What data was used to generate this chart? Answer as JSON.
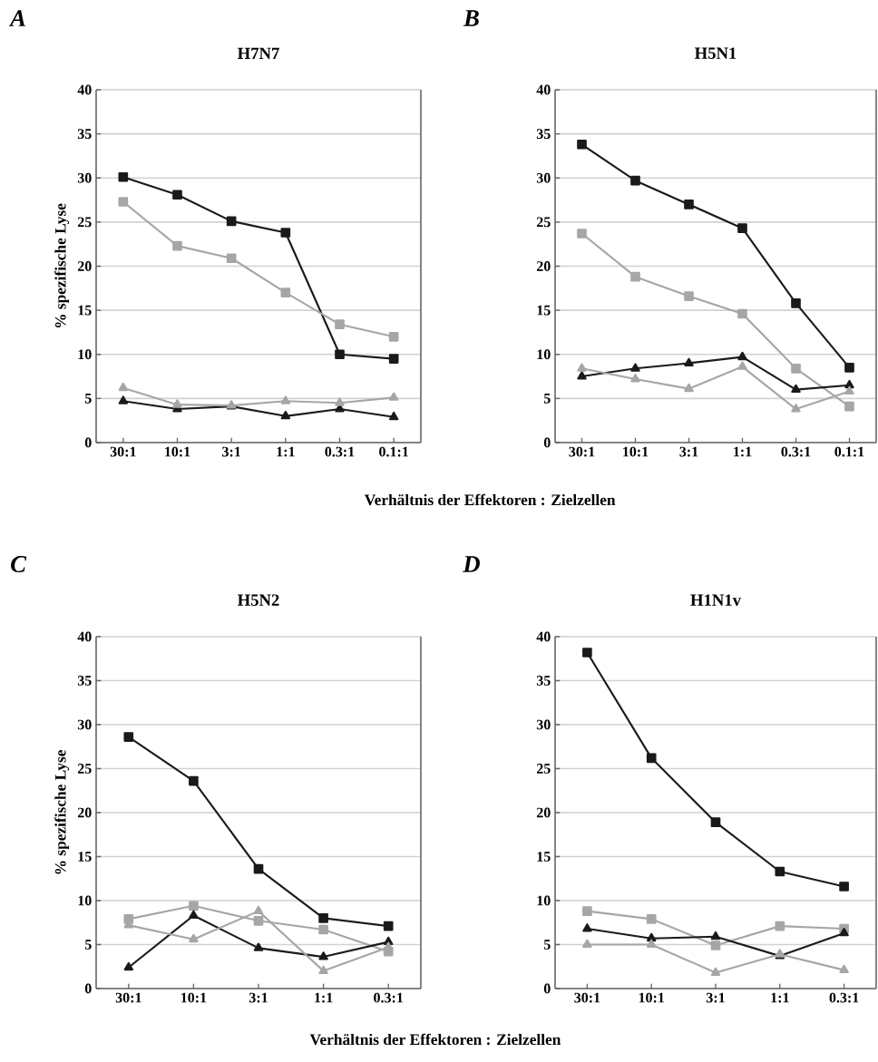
{
  "chart_data": [
    {
      "type": "line",
      "title": "H7N7",
      "ylabel": "% spezifische Lyse",
      "annotations": [
        "A"
      ],
      "categories": [
        "30:1",
        "10:1",
        "3:1",
        "1:1",
        "0.3:1",
        "0.1:1"
      ],
      "ylim": [
        0,
        40
      ],
      "yticks": [
        0,
        5,
        10,
        15,
        20,
        25,
        30,
        35,
        40
      ],
      "grid": "y",
      "series": [
        {
          "color": "#1a1a1a",
          "marker": "square",
          "values": [
            30.1,
            28.1,
            25.1,
            23.8,
            10.0,
            9.5
          ]
        },
        {
          "color": "#a6a6a6",
          "marker": "square",
          "values": [
            27.3,
            22.3,
            20.9,
            17.0,
            13.4,
            12.0
          ]
        },
        {
          "color": "#1a1a1a",
          "marker": "triangle",
          "values": [
            4.7,
            3.8,
            4.1,
            3.0,
            3.8,
            2.9
          ]
        },
        {
          "color": "#a6a6a6",
          "marker": "triangle",
          "values": [
            6.2,
            4.3,
            4.2,
            4.7,
            4.5,
            5.1
          ]
        }
      ]
    },
    {
      "type": "line",
      "title": "H5N1",
      "xlabel": "Verhältnis der Effektoren : Zielzellen",
      "annotations": [
        "B"
      ],
      "categories": [
        "30:1",
        "10:1",
        "3:1",
        "1:1",
        "0.3:1",
        "0.1:1"
      ],
      "ylim": [
        0,
        40
      ],
      "yticks": [
        0,
        5,
        10,
        15,
        20,
        25,
        30,
        35,
        40
      ],
      "grid": "y",
      "series": [
        {
          "color": "#1a1a1a",
          "marker": "square",
          "values": [
            33.8,
            29.7,
            27.0,
            24.3,
            15.8,
            8.5
          ]
        },
        {
          "color": "#a6a6a6",
          "marker": "square",
          "values": [
            23.7,
            18.8,
            16.6,
            14.6,
            8.4,
            4.1
          ]
        },
        {
          "color": "#1a1a1a",
          "marker": "triangle",
          "values": [
            7.5,
            8.4,
            9.0,
            9.7,
            6.0,
            6.5
          ]
        },
        {
          "color": "#a6a6a6",
          "marker": "triangle",
          "values": [
            8.4,
            7.2,
            6.1,
            8.6,
            3.8,
            5.8
          ]
        }
      ]
    },
    {
      "type": "line",
      "title": "H5N2",
      "ylabel": "% spezifische Lyse",
      "annotations": [
        "C"
      ],
      "categories": [
        "30:1",
        "10:1",
        "3:1",
        "1:1",
        "0.3:1"
      ],
      "ylim": [
        0,
        40
      ],
      "yticks": [
        0,
        5,
        10,
        15,
        20,
        25,
        30,
        35,
        40
      ],
      "grid": "y",
      "series": [
        {
          "color": "#1a1a1a",
          "marker": "square",
          "values": [
            28.6,
            23.6,
            13.6,
            8.0,
            7.1
          ]
        },
        {
          "color": "#a6a6a6",
          "marker": "square",
          "values": [
            7.9,
            9.4,
            7.7,
            6.7,
            4.2
          ]
        },
        {
          "color": "#1a1a1a",
          "marker": "triangle",
          "values": [
            2.4,
            8.3,
            4.6,
            3.6,
            5.3
          ]
        },
        {
          "color": "#a6a6a6",
          "marker": "triangle",
          "values": [
            7.2,
            5.6,
            8.8,
            2.0,
            4.7
          ]
        }
      ]
    },
    {
      "type": "line",
      "title": "H1N1v",
      "xlabel": "Verhältnis der Effektoren : Zielzellen",
      "annotations": [
        "D"
      ],
      "categories": [
        "30:1",
        "10:1",
        "3:1",
        "1:1",
        "0.3:1"
      ],
      "ylim": [
        0,
        40
      ],
      "yticks": [
        0,
        5,
        10,
        15,
        20,
        25,
        30,
        35,
        40
      ],
      "grid": "y",
      "series": [
        {
          "color": "#1a1a1a",
          "marker": "square",
          "values": [
            38.2,
            26.2,
            18.9,
            13.3,
            11.6
          ]
        },
        {
          "color": "#a6a6a6",
          "marker": "square",
          "values": [
            8.8,
            7.9,
            4.9,
            7.1,
            6.8
          ]
        },
        {
          "color": "#1a1a1a",
          "marker": "triangle",
          "values": [
            6.8,
            5.7,
            5.9,
            3.7,
            6.3
          ]
        },
        {
          "color": "#a6a6a6",
          "marker": "triangle",
          "values": [
            5.0,
            5.0,
            1.8,
            3.9,
            2.1
          ]
        }
      ]
    }
  ]
}
